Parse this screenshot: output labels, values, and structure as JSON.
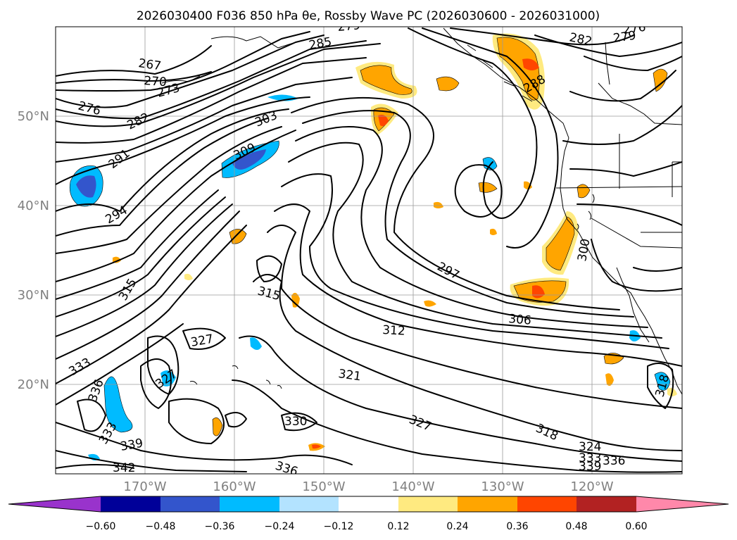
{
  "title_text": "2026030400 F036 850 hPa θe, Rossby Wave PC (2026030600 - 2026031000)",
  "lat_labels": [
    "50°N",
    "40°N",
    "30°N",
    "20°N"
  ],
  "lon_labels": [
    "170°W",
    "160°W",
    "150°W",
    "140°W",
    "130°W",
    "120°W"
  ],
  "colorbar": {
    "colors": [
      "#9933cc",
      "#000099",
      "#3355cc",
      "#00bbff",
      "#b3e3ff",
      "#ffffff",
      "#ffea80",
      "#ffa500",
      "#ff4500",
      "#b22222",
      "#ff88aa"
    ],
    "tick_labels": [
      "−0.60",
      "−0.48",
      "−0.36",
      "−0.24",
      "−0.12",
      "0.12",
      "0.24",
      "0.36",
      "0.48",
      "0.60"
    ]
  },
  "contour_labels": [
    {
      "text": "267"
    },
    {
      "text": "270"
    },
    {
      "text": "273"
    },
    {
      "text": "276"
    },
    {
      "text": "279"
    },
    {
      "text": "282"
    },
    {
      "text": "282"
    },
    {
      "text": "279"
    },
    {
      "text": "276"
    },
    {
      "text": "285"
    },
    {
      "text": "288"
    },
    {
      "text": "291"
    },
    {
      "text": "294"
    },
    {
      "text": "297"
    },
    {
      "text": "300"
    },
    {
      "text": "303"
    },
    {
      "text": "306"
    },
    {
      "text": "309"
    },
    {
      "text": "312"
    },
    {
      "text": "315"
    },
    {
      "text": "315"
    },
    {
      "text": "318"
    },
    {
      "text": "318"
    },
    {
      "text": "321"
    },
    {
      "text": "324"
    },
    {
      "text": "327"
    },
    {
      "text": "327"
    },
    {
      "text": "327"
    },
    {
      "text": "330"
    },
    {
      "text": "333"
    },
    {
      "text": "333"
    },
    {
      "text": "333"
    },
    {
      "text": "336"
    },
    {
      "text": "336"
    },
    {
      "text": "336"
    },
    {
      "text": "339"
    },
    {
      "text": "339"
    },
    {
      "text": "342"
    }
  ]
}
